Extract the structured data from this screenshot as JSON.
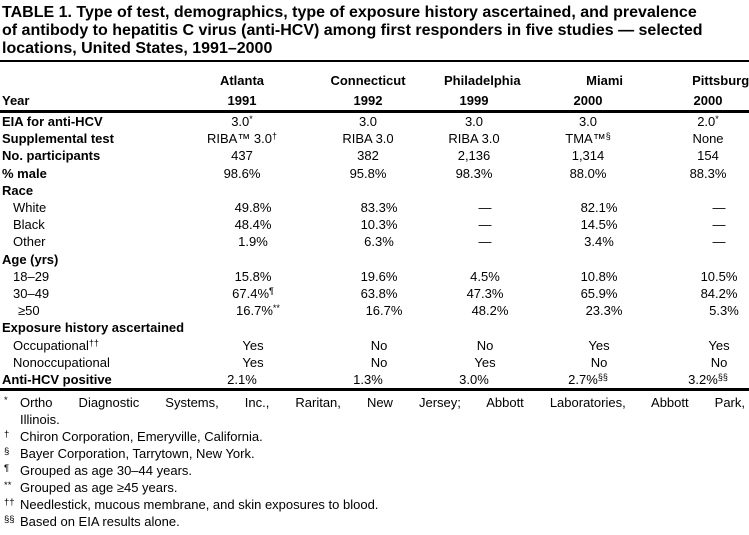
{
  "title": "TABLE 1. Type of test, demographics, type of exposure history ascertained, and prevalence of antibody to hepatitis C virus (anti-HCV) among first responders in five studies — selected locations, United States, 1991–2000",
  "colors": {
    "text": "#000000",
    "background": "#ffffff",
    "rule": "#000000"
  },
  "table": {
    "year_label": "Year",
    "columns": [
      {
        "city": "Atlanta",
        "year": "1991"
      },
      {
        "city": "Connecticut",
        "year": "1992"
      },
      {
        "city": "Philadelphia",
        "year": "1999"
      },
      {
        "city": "Miami",
        "year": "2000"
      },
      {
        "city": "Pittsburgh",
        "year": "2000"
      }
    ],
    "rows": [
      {
        "label": "EIA for anti-HCV",
        "level": 0,
        "values": [
          "3.0|*",
          "3.0",
          "3.0",
          "3.0",
          "2.0|*"
        ]
      },
      {
        "label": "Supplemental test",
        "level": 0,
        "values": [
          "RIBA™ 3.0|†",
          "RIBA 3.0",
          "RIBA 3.0",
          "TMA™|§",
          "None"
        ]
      },
      {
        "label": "No. participants",
        "level": 0,
        "values": [
          "437",
          "382",
          "2,136",
          "1,314",
          "154"
        ]
      },
      {
        "label": "% male",
        "level": 0,
        "values": [
          "98.6%",
          "95.8%",
          "98.3%",
          "88.0%",
          "88.3%"
        ]
      },
      {
        "label": "Race",
        "level": 0,
        "values": [
          "",
          "",
          "",
          "",
          ""
        ]
      },
      {
        "label": "White",
        "level": 1,
        "values": [
          "49.8%",
          "83.3%",
          "—",
          "82.1%",
          "—"
        ]
      },
      {
        "label": "Black",
        "level": 1,
        "values": [
          "48.4%",
          "10.3%",
          "—",
          "14.5%",
          "—"
        ]
      },
      {
        "label": "Other",
        "level": 1,
        "values": [
          "1.9%",
          "6.3%",
          "—",
          "3.4%",
          "—"
        ]
      },
      {
        "label": "Age (yrs)",
        "level": 0,
        "values": [
          "",
          "",
          "",
          "",
          ""
        ]
      },
      {
        "label": "18–29",
        "level": 1,
        "values": [
          "15.8%",
          "19.6%",
          "4.5%",
          "10.8%",
          "10.5%"
        ]
      },
      {
        "label": "30–49",
        "level": 1,
        "values": [
          "67.4%|¶",
          "63.8%",
          "47.3%",
          "65.9%",
          "84.2%"
        ]
      },
      {
        "label": "≥50",
        "level": 2,
        "values": [
          "16.7%|**",
          "16.7%",
          "48.2%",
          "23.3%",
          "5.3%"
        ]
      },
      {
        "label": "Exposure history ascertained",
        "level": 0,
        "values": [
          "",
          "",
          "",
          "",
          ""
        ]
      },
      {
        "label": "Occupational|††",
        "level": 1,
        "values": [
          "Yes",
          "No",
          "No",
          "Yes",
          "Yes"
        ]
      },
      {
        "label": "Nonoccupational",
        "level": 1,
        "values": [
          "Yes",
          "No",
          "Yes",
          "No",
          "No"
        ]
      },
      {
        "label": "Anti-HCV positive",
        "level": 0,
        "values": [
          "2.1%",
          "1.3%",
          "3.0%",
          "2.7%|§§",
          "3.2%|§§"
        ]
      }
    ]
  },
  "footnotes": [
    {
      "marker": "*",
      "justify": true,
      "lines": [
        "Ortho Diagnostic Systems, Inc., Raritan, New Jersey; Abbott Laboratories, Abbott Park,",
        "Illinois."
      ]
    },
    {
      "marker": "†",
      "lines": [
        "Chiron Corporation, Emeryville, California."
      ]
    },
    {
      "marker": "§",
      "lines": [
        "Bayer Corporation, Tarrytown, New York."
      ]
    },
    {
      "marker": "¶",
      "lines": [
        "Grouped as age 30–44 years."
      ]
    },
    {
      "marker": "**",
      "lines": [
        "Grouped as age ≥45 years."
      ]
    },
    {
      "marker": "††",
      "lines": [
        "Needlestick, mucous membrane, and skin exposures to blood."
      ]
    },
    {
      "marker": "§§",
      "lines": [
        "Based on EIA results alone."
      ]
    }
  ]
}
